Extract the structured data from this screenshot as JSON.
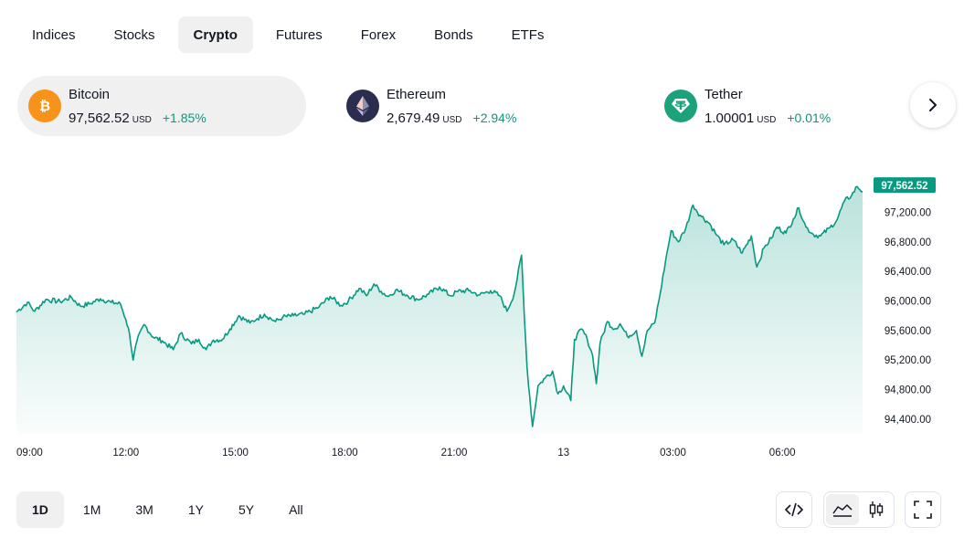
{
  "tabs": [
    {
      "label": "Indices",
      "active": false
    },
    {
      "label": "Stocks",
      "active": false
    },
    {
      "label": "Crypto",
      "active": true
    },
    {
      "label": "Futures",
      "active": false
    },
    {
      "label": "Forex",
      "active": false
    },
    {
      "label": "Bonds",
      "active": false
    },
    {
      "label": "ETFs",
      "active": false
    }
  ],
  "tickers": [
    {
      "name": "Bitcoin",
      "price": "97,562.52",
      "currency": "USD",
      "change": "+1.85%",
      "icon": "bitcoin-icon",
      "color": "#f7931a",
      "active": true
    },
    {
      "name": "Ethereum",
      "price": "2,679.49",
      "currency": "USD",
      "change": "+2.94%",
      "icon": "ethereum-icon",
      "color": "#2b2d4e",
      "active": false
    },
    {
      "name": "Tether",
      "price": "1.00001",
      "currency": "USD",
      "change": "+0.01%",
      "icon": "tether-icon",
      "color": "#1ba27a",
      "active": false
    }
  ],
  "next_icon": "chevron-right-icon",
  "chart_data": {
    "type": "area",
    "series": [
      {
        "values": [
          [
            9.0,
            95850
          ],
          [
            9.3,
            95980
          ],
          [
            9.5,
            95860
          ],
          [
            9.8,
            96020
          ],
          [
            10.2,
            95990
          ],
          [
            10.5,
            96050
          ],
          [
            10.75,
            95930
          ],
          [
            11.0,
            95960
          ],
          [
            11.3,
            96030
          ],
          [
            11.6,
            95980
          ],
          [
            11.85,
            95960
          ],
          [
            12.0,
            95750
          ],
          [
            12.1,
            95560
          ],
          [
            12.2,
            95200
          ],
          [
            12.3,
            95450
          ],
          [
            12.5,
            95680
          ],
          [
            12.75,
            95510
          ],
          [
            13.0,
            95460
          ],
          [
            13.3,
            95340
          ],
          [
            13.5,
            95560
          ],
          [
            13.8,
            95420
          ],
          [
            14.0,
            95480
          ],
          [
            14.2,
            95340
          ],
          [
            14.4,
            95470
          ],
          [
            14.65,
            95480
          ],
          [
            14.85,
            95620
          ],
          [
            15.1,
            95800
          ],
          [
            15.4,
            95700
          ],
          [
            15.6,
            95760
          ],
          [
            15.8,
            95820
          ],
          [
            16.1,
            95720
          ],
          [
            16.3,
            95780
          ],
          [
            16.6,
            95800
          ],
          [
            16.9,
            95820
          ],
          [
            17.3,
            95920
          ],
          [
            17.6,
            96060
          ],
          [
            17.9,
            95940
          ],
          [
            18.1,
            96000
          ],
          [
            18.4,
            96170
          ],
          [
            18.6,
            96070
          ],
          [
            18.8,
            96230
          ],
          [
            19.0,
            96130
          ],
          [
            19.2,
            96060
          ],
          [
            19.4,
            96150
          ],
          [
            19.7,
            96080
          ],
          [
            20.0,
            96020
          ],
          [
            20.3,
            96090
          ],
          [
            20.6,
            96190
          ],
          [
            20.9,
            96070
          ],
          [
            21.1,
            96130
          ],
          [
            21.4,
            96140
          ],
          [
            21.7,
            96080
          ],
          [
            22.0,
            96140
          ],
          [
            22.25,
            96070
          ],
          [
            22.45,
            95860
          ],
          [
            22.65,
            96100
          ],
          [
            22.85,
            96620
          ],
          [
            22.92,
            95850
          ],
          [
            23.0,
            95100
          ],
          [
            23.15,
            94300
          ],
          [
            23.3,
            94850
          ],
          [
            23.5,
            94960
          ],
          [
            23.7,
            95050
          ],
          [
            23.85,
            94740
          ],
          [
            24.0,
            94850
          ],
          [
            24.2,
            94650
          ],
          [
            24.3,
            95480
          ],
          [
            24.5,
            95620
          ],
          [
            24.65,
            95480
          ],
          [
            24.8,
            95260
          ],
          [
            24.9,
            94880
          ],
          [
            25.0,
            95420
          ],
          [
            25.2,
            95720
          ],
          [
            25.4,
            95620
          ],
          [
            25.55,
            95690
          ],
          [
            25.75,
            95520
          ],
          [
            26.0,
            95600
          ],
          [
            26.15,
            95250
          ],
          [
            26.3,
            95600
          ],
          [
            26.5,
            95700
          ],
          [
            26.65,
            96100
          ],
          [
            26.8,
            96550
          ],
          [
            26.95,
            96950
          ],
          [
            27.15,
            96800
          ],
          [
            27.35,
            96980
          ],
          [
            27.55,
            97300
          ],
          [
            27.75,
            97160
          ],
          [
            28.0,
            97050
          ],
          [
            28.2,
            96890
          ],
          [
            28.4,
            96760
          ],
          [
            28.65,
            96830
          ],
          [
            28.9,
            96650
          ],
          [
            29.15,
            96880
          ],
          [
            29.3,
            96460
          ],
          [
            29.5,
            96720
          ],
          [
            29.7,
            96850
          ],
          [
            29.85,
            97000
          ],
          [
            30.1,
            96920
          ],
          [
            30.3,
            97110
          ],
          [
            30.45,
            97260
          ],
          [
            30.65,
            97000
          ],
          [
            30.85,
            96900
          ],
          [
            31.05,
            96880
          ],
          [
            31.3,
            96990
          ],
          [
            31.5,
            97100
          ],
          [
            31.7,
            97350
          ],
          [
            31.9,
            97430
          ],
          [
            32.05,
            97550
          ],
          [
            32.2,
            97480
          ]
        ]
      }
    ],
    "x_ticks": [
      "09:00",
      "12:00",
      "15:00",
      "18:00",
      "21:00",
      "13",
      "03:00",
      "06:00"
    ],
    "y_ticks": [
      "97,200.00",
      "96,800.00",
      "96,400.00",
      "96,000.00",
      "95,600.00",
      "95,200.00",
      "94,800.00",
      "94,400.00"
    ],
    "last_value_label": "97,562.52",
    "ylim": [
      94200,
      97750
    ],
    "line_color": "#089981",
    "fill_color": "#089981",
    "label_bg": "#089981",
    "grid": false
  },
  "ranges": [
    {
      "label": "1D",
      "active": true
    },
    {
      "label": "1M",
      "active": false
    },
    {
      "label": "3M",
      "active": false
    },
    {
      "label": "1Y",
      "active": false
    },
    {
      "label": "5Y",
      "active": false
    },
    {
      "label": "All",
      "active": false
    }
  ],
  "tools": {
    "embed_icon": "code-icon",
    "area_icon": "area-chart-icon",
    "candle_icon": "candlestick-icon",
    "fullscreen_icon": "fullscreen-icon",
    "active_chart_type": "area"
  }
}
